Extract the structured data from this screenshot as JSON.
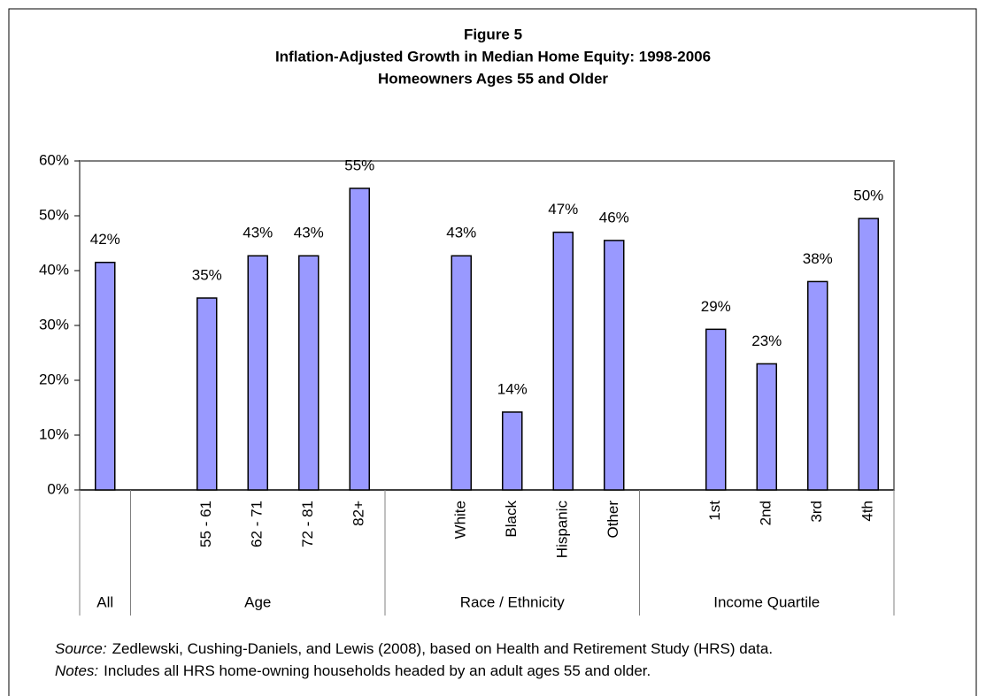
{
  "chart_data": {
    "type": "bar",
    "title": "Figure 5",
    "subtitle": "Inflation-Adjusted Growth in Median Home Equity: 1998-2006",
    "subtitle2": "Homeowners Ages 55 and Older",
    "categories": [
      null,
      null,
      "55 - 61",
      "62 - 71",
      "72 - 81",
      "82+",
      null,
      "White",
      "Black",
      "Hispanic",
      "Other",
      null,
      "1st",
      "2nd",
      "3rd",
      "4th"
    ],
    "values": [
      41.5,
      null,
      35,
      42.7,
      42.7,
      55,
      null,
      42.7,
      14.2,
      47,
      45.5,
      null,
      29.3,
      23,
      38,
      49.5
    ],
    "value_labels": [
      "42%",
      null,
      "35%",
      "43%",
      "43%",
      "55%",
      null,
      "43%",
      "14%",
      "47%",
      "46%",
      null,
      "29%",
      "23%",
      "38%",
      "50%"
    ],
    "groups": [
      "All",
      "Age",
      "Race / Ethnicity",
      "Income Quartile"
    ],
    "color": "#9999ff",
    "ylim": [
      0,
      60
    ],
    "yticks": [
      {
        "value": 0,
        "label": "0%"
      },
      {
        "value": 10,
        "label": "10%"
      },
      {
        "value": 20,
        "label": "20%"
      },
      {
        "value": 30,
        "label": "30%"
      },
      {
        "value": 40,
        "label": "40%"
      },
      {
        "value": 50,
        "label": "50%"
      },
      {
        "value": 60,
        "label": "60%"
      }
    ],
    "grid": false,
    "source_label": "Source:",
    "source_text": "Zedlewski, Cushing-Daniels, and Lewis (2008), based on Health and Retirement Study (HRS) data.",
    "notes_label": "Notes:",
    "notes_text": "Includes all HRS home-owning households headed by an adult ages 55 and older."
  }
}
